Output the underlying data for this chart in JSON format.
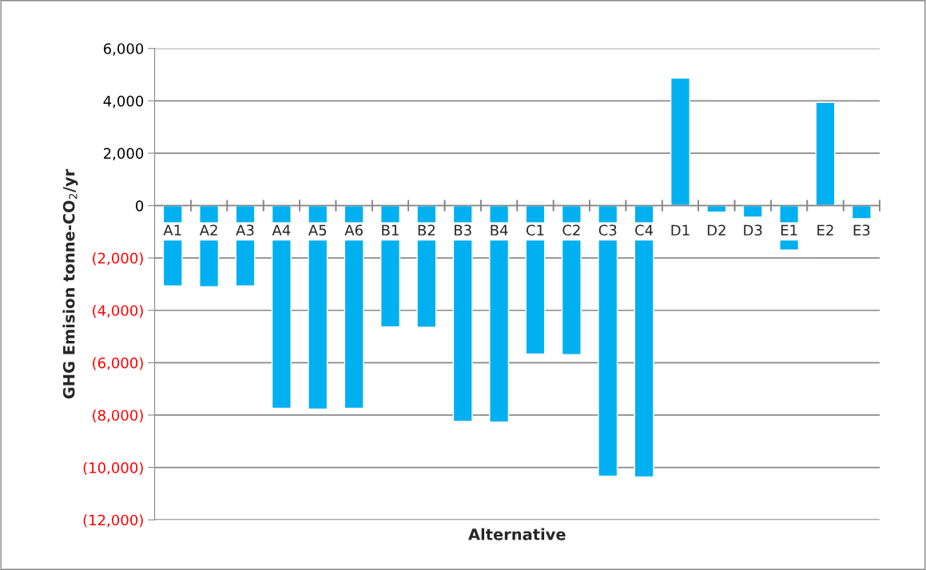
{
  "chart_data": {
    "type": "bar",
    "xlabel": "Alternative",
    "ylabel": "GHG Emision tonne-CO$_{2}$/yr",
    "categories": [
      "A1",
      "A2",
      "A3",
      "A4",
      "A5",
      "A6",
      "B1",
      "B2",
      "B3",
      "B4",
      "C1",
      "C2",
      "C3",
      "C4",
      "D1",
      "D2",
      "D3",
      "E1",
      "E2",
      "E3"
    ],
    "values": [
      -3070,
      -3100,
      -3070,
      -7740,
      -7770,
      -7740,
      -4630,
      -4650,
      -8240,
      -8270,
      -5670,
      -5690,
      -10330,
      -10360,
      4870,
      -250,
      -440,
      -1700,
      3940,
      -500
    ],
    "color": "#00b0f0",
    "ylim": [
      -12000,
      6000
    ],
    "yticks": [
      {
        "value": -12000,
        "label": "(12,000)"
      },
      {
        "value": -10000,
        "label": "(10,000)"
      },
      {
        "value": -8000,
        "label": "(8,000)"
      },
      {
        "value": -6000,
        "label": "(6,000)"
      },
      {
        "value": -4000,
        "label": "(4,000)"
      },
      {
        "value": -2000,
        "label": "(2,000)"
      },
      {
        "value": 0,
        "label": "0"
      },
      {
        "value": 2000,
        "label": "2,000"
      },
      {
        "value": 4000,
        "label": "4,000"
      },
      {
        "value": 6000,
        "label": "6,000"
      }
    ],
    "grid": "y"
  }
}
